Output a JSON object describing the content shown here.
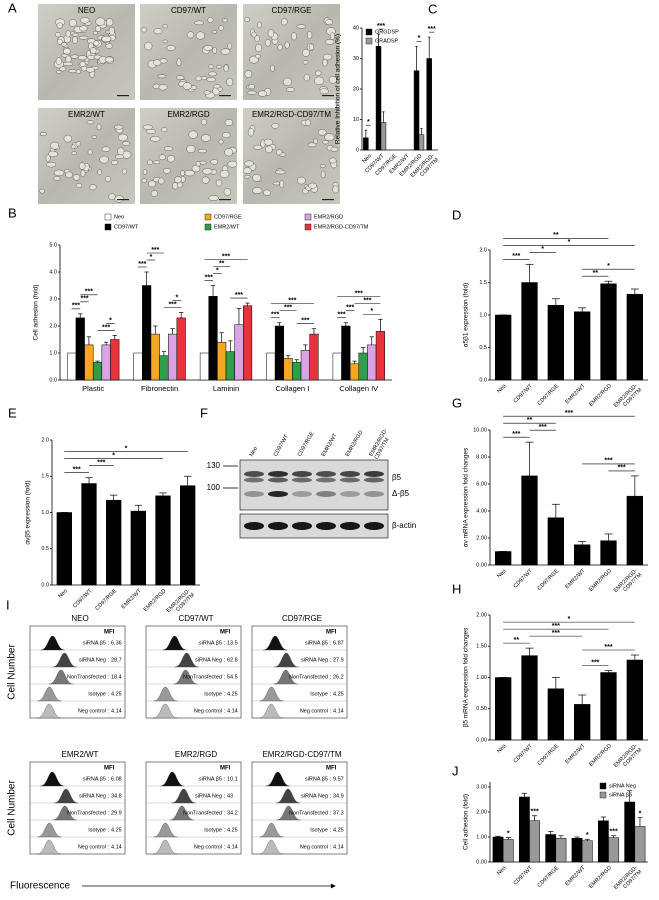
{
  "chart_data": [
    {
      "type": "bar",
      "label": "B",
      "ylabel": "Cell adhesion (fold)",
      "categories": [
        "Plastic",
        "Fibronectin",
        "Laminin",
        "Collagen I",
        "Collagen IV"
      ],
      "series": [
        {
          "name": "Neo",
          "color": "#ffffff",
          "values": [
            1,
            1,
            1,
            1,
            1
          ]
        },
        {
          "name": "CD97/WT",
          "color": "#000000",
          "values": [
            2.3,
            3.5,
            3.1,
            2.0,
            2.0
          ],
          "errors": [
            0.15,
            0.5,
            0.4,
            0.12,
            0.12
          ]
        },
        {
          "name": "CD97/RGE",
          "color": "#f5a623",
          "values": [
            1.3,
            1.7,
            1.4,
            0.8,
            0.6
          ],
          "errors": [
            0.3,
            0.3,
            0.35,
            0.1,
            0.1
          ]
        },
        {
          "name": "EMR2/WT",
          "color": "#2e9e4a",
          "values": [
            0.65,
            0.9,
            1.05,
            0.65,
            1.0
          ],
          "errors": [
            0.05,
            0.15,
            0.4,
            0.1,
            0.2
          ]
        },
        {
          "name": "EMR2/RGD",
          "color": "#d9a3e6",
          "values": [
            1.3,
            1.7,
            2.05,
            1.1,
            1.3
          ],
          "errors": [
            0.1,
            0.2,
            0.6,
            0.2,
            0.3
          ]
        },
        {
          "name": "EMR2/RGD-CD97/TM",
          "color": "#e8333c",
          "values": [
            1.5,
            2.3,
            2.75,
            1.7,
            1.8
          ],
          "errors": [
            0.15,
            0.2,
            0.1,
            0.2,
            0.45
          ]
        }
      ],
      "ylim": [
        0,
        5
      ],
      "yticks": [
        {
          "value": 0,
          "label": "0.0"
        },
        {
          "value": 1,
          "label": "1.0"
        },
        {
          "value": 2,
          "label": "2.0"
        },
        {
          "value": 3,
          "label": "3.0"
        },
        {
          "value": 4,
          "label": "4.0"
        },
        {
          "value": 5,
          "label": "5.0"
        }
      ],
      "legend": "top",
      "comparisons": [
        {
          "category": 0,
          "from": 0,
          "to": 1,
          "label": "***"
        },
        {
          "category": 0,
          "from": 1,
          "to": 2,
          "label": "***"
        },
        {
          "category": 0,
          "from": 1,
          "to": 3,
          "label": "***"
        },
        {
          "category": 0,
          "from": 3,
          "to": 5,
          "label": "***"
        },
        {
          "category": 0,
          "from": 4,
          "to": 5,
          "label": "*"
        },
        {
          "category": 1,
          "from": 0,
          "to": 1,
          "label": "***"
        },
        {
          "category": 1,
          "from": 1,
          "to": 2,
          "label": "*"
        },
        {
          "category": 1,
          "from": 1,
          "to": 3,
          "label": "***"
        },
        {
          "category": 1,
          "from": 3,
          "to": 5,
          "label": "***"
        },
        {
          "category": 1,
          "from": 4,
          "to": 5,
          "label": "*"
        },
        {
          "category": 2,
          "from": 0,
          "to": 1,
          "label": "***"
        },
        {
          "category": 2,
          "from": 1,
          "to": 2,
          "label": "*"
        },
        {
          "category": 2,
          "from": 1,
          "to": 3,
          "label": "**"
        },
        {
          "category": 2,
          "from": 3,
          "to": 5,
          "label": "***"
        },
        {
          "category": 2,
          "from": 0,
          "to": 5,
          "label": "***"
        },
        {
          "category": 3,
          "from": 0,
          "to": 1,
          "label": "***"
        },
        {
          "category": 3,
          "from": 1,
          "to": 3,
          "label": "***"
        },
        {
          "category": 3,
          "from": 3,
          "to": 5,
          "label": "***"
        },
        {
          "category": 3,
          "from": 0,
          "to": 5,
          "label": "***"
        },
        {
          "category": 4,
          "from": 0,
          "to": 1,
          "label": "***"
        },
        {
          "category": 4,
          "from": 1,
          "to": 2,
          "label": "***"
        },
        {
          "category": 4,
          "from": 2,
          "to": 5,
          "label": "***"
        },
        {
          "category": 4,
          "from": 3,
          "to": 5,
          "label": "*"
        },
        {
          "category": 4,
          "from": 0,
          "to": 5,
          "label": "***"
        }
      ]
    },
    {
      "type": "bar",
      "label": "C",
      "ylabel": "Relative Inhibition of cell adhesion (%)",
      "categories": [
        "Neo",
        "CD97/WT",
        "CD97/RGE",
        "EMR2/WT",
        "EMR2/RGD",
        "EMR2/RGD-CD97/TM"
      ],
      "series": [
        {
          "name": "GRGDSP",
          "color": "#000000",
          "values": [
            4,
            34,
            null,
            null,
            26,
            30
          ],
          "errors": [
            2.5,
            4,
            null,
            null,
            8,
            7
          ]
        },
        {
          "name": "GRADSP",
          "color": "#999999",
          "values": [
            null,
            9,
            null,
            null,
            5,
            null
          ],
          "errors": [
            null,
            3.5,
            null,
            null,
            2,
            null
          ]
        }
      ],
      "ylim": [
        0,
        40
      ],
      "yticks": [
        0,
        10,
        20,
        30,
        40
      ],
      "legend": "top-left",
      "comparisons": [
        {
          "category": 0,
          "from": 0,
          "to": 1,
          "label": "*"
        },
        {
          "category": 1,
          "from": 0,
          "to": 1,
          "label": "***"
        },
        {
          "category": 4,
          "from": 0,
          "to": 1,
          "label": "*"
        },
        {
          "category": 5,
          "from": 0,
          "to": 1,
          "label": "***"
        }
      ]
    },
    {
      "type": "bar",
      "label": "D",
      "ylabel": "α5β1 expression (fold)",
      "categories": [
        "Neo",
        "CD97/WT",
        "CD97/RGE",
        "EMR2/WT",
        "EMR2/RGD",
        "EMR2/RGD-CD97/TM"
      ],
      "values": [
        1,
        1.5,
        1.15,
        1.05,
        1.48,
        1.32
      ],
      "errors": [
        0,
        0.28,
        0.1,
        0.06,
        0.04,
        0.08
      ],
      "color": "#000000",
      "ylim": [
        0,
        2
      ],
      "yticks": [
        {
          "value": 0,
          "label": "0.0"
        },
        {
          "value": 0.5,
          "label": "0.5"
        },
        {
          "value": 1,
          "label": "1.0"
        },
        {
          "value": 1.5,
          "label": "1.5"
        },
        {
          "value": 2,
          "label": "2.0"
        }
      ],
      "comparisons": [
        {
          "from": 0,
          "to": 1,
          "label": "***"
        },
        {
          "from": 1,
          "to": 2,
          "label": "*"
        },
        {
          "from": 3,
          "to": 4,
          "label": "**"
        },
        {
          "from": 3,
          "to": 5,
          "label": "*"
        },
        {
          "from": 0,
          "to": 5,
          "label": "*"
        },
        {
          "from": 0,
          "to": 4,
          "label": "**"
        }
      ]
    },
    {
      "type": "bar",
      "label": "E",
      "ylabel": "αvβ5 expression (fold)",
      "categories": [
        "Neo",
        "CD97/WT",
        "CD97/RGE",
        "EMR2/WT",
        "EMR2/RGD",
        "EMR2/RGD-CD97/TM"
      ],
      "values": [
        1,
        1.4,
        1.17,
        1.02,
        1.23,
        1.37
      ],
      "errors": [
        0,
        0.08,
        0.07,
        0.08,
        0.04,
        0.13
      ],
      "color": "#000000",
      "ylim": [
        0,
        2
      ],
      "yticks": [
        {
          "value": 0,
          "label": "0.0"
        },
        {
          "value": 0.5,
          "label": "0.5"
        },
        {
          "value": 1,
          "label": "1.0"
        },
        {
          "value": 1.5,
          "label": "1.5"
        },
        {
          "value": 2,
          "label": "2.0"
        }
      ],
      "comparisons": [
        {
          "from": 0,
          "to": 1,
          "label": "***"
        },
        {
          "from": 1,
          "to": 2,
          "label": "***"
        },
        {
          "from": 0,
          "to": 4,
          "label": "*"
        },
        {
          "from": 0,
          "to": 5,
          "label": "*"
        }
      ]
    },
    {
      "type": "bar",
      "label": "G",
      "ylabel": "αv mRNA expression fold changes",
      "categories": [
        "Neo",
        "CD97/WT",
        "CD97/RGE",
        "EMR2/WT",
        "EMR2/RGD",
        "EMR2/RGD-CD97/TM"
      ],
      "values": [
        1,
        6.6,
        3.5,
        1.5,
        1.8,
        5.1
      ],
      "errors": [
        0,
        2.5,
        1,
        0.25,
        0.5,
        1.5
      ],
      "color": "#000000",
      "ylim": [
        0,
        10
      ],
      "yticks": [
        {
          "value": 0,
          "label": "0.00"
        },
        {
          "value": 2,
          "label": "2.00"
        },
        {
          "value": 4,
          "label": "4.00"
        },
        {
          "value": 6,
          "label": "6.00"
        },
        {
          "value": 8,
          "label": "8.00"
        },
        {
          "value": 10,
          "label": "10.00"
        }
      ],
      "comparisons": [
        {
          "from": 0,
          "to": 1,
          "label": "***"
        },
        {
          "from": 1,
          "to": 2,
          "label": "***"
        },
        {
          "from": 4,
          "to": 5,
          "label": "***"
        },
        {
          "from": 3,
          "to": 5,
          "label": "***"
        },
        {
          "from": 0,
          "to": 2,
          "label": "**"
        },
        {
          "from": 0,
          "to": 5,
          "label": "***"
        }
      ]
    },
    {
      "type": "bar",
      "label": "H",
      "ylabel": "β5 mRNA expression fold changes",
      "categories": [
        "Neo",
        "CD97/WT",
        "CD97/RGE",
        "EMR2/WT",
        "EMR2/RGD",
        "EMR2/RGD-CD97/TM"
      ],
      "values": [
        1,
        1.35,
        0.82,
        0.57,
        1.08,
        1.28
      ],
      "errors": [
        0,
        0.12,
        0.18,
        0.15,
        0.03,
        0.08
      ],
      "color": "#000000",
      "ylim": [
        0,
        2
      ],
      "yticks": [
        {
          "value": 0,
          "label": "0.00"
        },
        {
          "value": 0.5,
          "label": "0.50"
        },
        {
          "value": 1,
          "label": "1.00"
        },
        {
          "value": 1.5,
          "label": "1.50"
        },
        {
          "value": 2,
          "label": "2.00"
        }
      ],
      "comparisons": [
        {
          "from": 0,
          "to": 1,
          "label": "**"
        },
        {
          "from": 1,
          "to": 3,
          "label": "***"
        },
        {
          "from": 3,
          "to": 4,
          "label": "***"
        },
        {
          "from": 3,
          "to": 5,
          "label": "***"
        },
        {
          "from": 0,
          "to": 4,
          "label": "***"
        },
        {
          "from": 0,
          "to": 5,
          "label": "*"
        }
      ]
    },
    {
      "type": "bar",
      "label": "J",
      "ylabel": "Cell adhesion (fold)",
      "categories": [
        "Neo",
        "CD97/WT",
        "CD97/RGE",
        "EMR2/WT",
        "EMR2/RGD",
        "EMR2/RGD-CD97/TM"
      ],
      "series": [
        {
          "name": "siRNA Neg",
          "color": "#000000",
          "values": [
            1,
            2.6,
            1.1,
            0.95,
            1.65,
            2.4
          ],
          "errors": [
            0.03,
            0.15,
            0.12,
            0.05,
            0.15,
            0.45
          ]
        },
        {
          "name": "siRNA β5",
          "color": "#999999",
          "values": [
            0.9,
            1.65,
            0.95,
            0.85,
            0.97,
            1.42
          ],
          "errors": [
            0.08,
            0.2,
            0.1,
            0.06,
            0.08,
            0.35
          ],
          "significance": [
            "*",
            "***",
            null,
            "*",
            "***",
            "*"
          ]
        }
      ],
      "ylim": [
        0,
        3.2
      ],
      "yticks": [
        {
          "value": 0,
          "label": "0.00"
        },
        {
          "value": 1,
          "label": "1.00"
        },
        {
          "value": 2,
          "label": "2.00"
        },
        {
          "value": 3,
          "label": "3.00"
        }
      ],
      "legend": "top-right"
    }
  ],
  "figure": {
    "panel_a": {
      "label": "A",
      "images": [
        "NEO",
        "CD97/WT",
        "CD97/RGE",
        "EMR2/WT",
        "EMR2/RGD",
        "EMR2/RGD-CD97/TM"
      ]
    },
    "panel_f": {
      "label": "F",
      "lanes": [
        "Neo",
        "CD97/WT",
        "CD97/RGE",
        "EMR2/WT",
        "EMR2/RGD",
        "EMR2/RGD-CD97/TM"
      ],
      "markers": [
        130,
        100
      ],
      "bands": [
        "β5",
        "Δ-β5",
        "β-actin"
      ]
    },
    "panel_i": {
      "label": "I",
      "ylabel": "Cell Number",
      "xlabel": "Fluorescence",
      "header": "MFI",
      "rows": [
        "siRNA β5 :",
        "siRNA Neg :",
        "NonTransfected :",
        "Isotype :",
        "Neg control :"
      ],
      "panels": [
        {
          "title": "NEO",
          "values": [
            6.36,
            28.7,
            18.4,
            4.25,
            4.14
          ]
        },
        {
          "title": "CD97/WT",
          "values": [
            13.5,
            62.8,
            54.5,
            4.25,
            4.14
          ]
        },
        {
          "title": "CD97/RGE",
          "values": [
            6.87,
            27.9,
            26.2,
            4.25,
            4.14
          ]
        },
        {
          "title": "EMR2/WT",
          "values": [
            6.08,
            34.8,
            29.9,
            4.25,
            4.14
          ]
        },
        {
          "title": "EMR2/RGD",
          "values": [
            10.1,
            43,
            34.2,
            4.25,
            4.14
          ]
        },
        {
          "title": "EMR2/RGD-CD97/TM",
          "values": [
            9.57,
            34.9,
            37.3,
            4.25,
            4.14
          ]
        }
      ]
    }
  }
}
